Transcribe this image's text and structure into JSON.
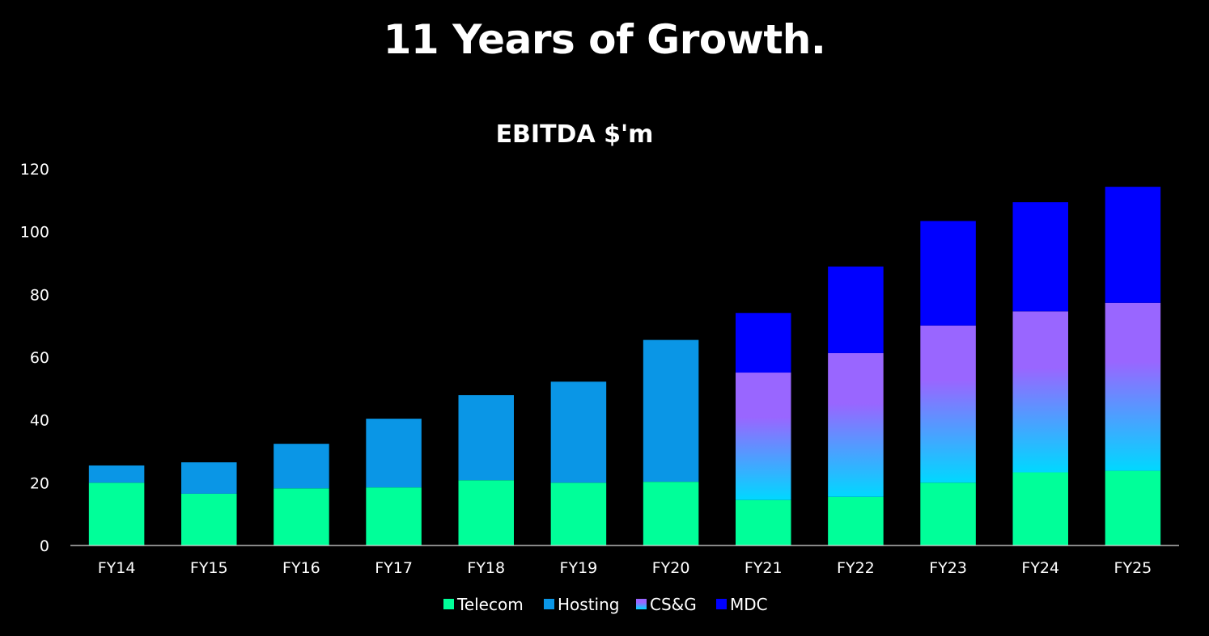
{
  "slide": {
    "title": "11 Years of Growth."
  },
  "chart_data": {
    "type": "bar",
    "stacked": true,
    "title": "EBITDA $'m",
    "xlabel": "",
    "ylabel": "",
    "ylim": [
      0,
      120
    ],
    "yticks": [
      0,
      20,
      40,
      60,
      80,
      100,
      120
    ],
    "grid": false,
    "legend_position": "bottom",
    "categories": [
      "FY14",
      "FY15",
      "FY16",
      "FY17",
      "FY18",
      "FY19",
      "FY20",
      "FY21",
      "FY22",
      "FY23",
      "FY24",
      "FY25"
    ],
    "series": [
      {
        "name": "Telecom",
        "color": "#00FF99",
        "values": [
          20,
          16.5,
          18.2,
          18.5,
          20.8,
          20,
          20.3,
          14.5,
          15.5,
          20,
          23.3,
          23.8
        ]
      },
      {
        "name": "Hosting",
        "color": "#0A96E6",
        "values": [
          5.5,
          10,
          14.2,
          21.9,
          27.1,
          32.2,
          45.2,
          0,
          0,
          0,
          0,
          0
        ]
      },
      {
        "name": "CS&G",
        "color": "#9966FF",
        "color_bottom": "#00D8FF",
        "values": [
          0,
          0,
          0,
          0,
          0,
          0,
          0,
          40.6,
          45.8,
          50.1,
          51.3,
          53.5
        ]
      },
      {
        "name": "MDC",
        "color": "#0000FF",
        "values": [
          0,
          0,
          0,
          0,
          0,
          0,
          0,
          19,
          27.6,
          33.3,
          34.8,
          37
        ]
      }
    ]
  }
}
